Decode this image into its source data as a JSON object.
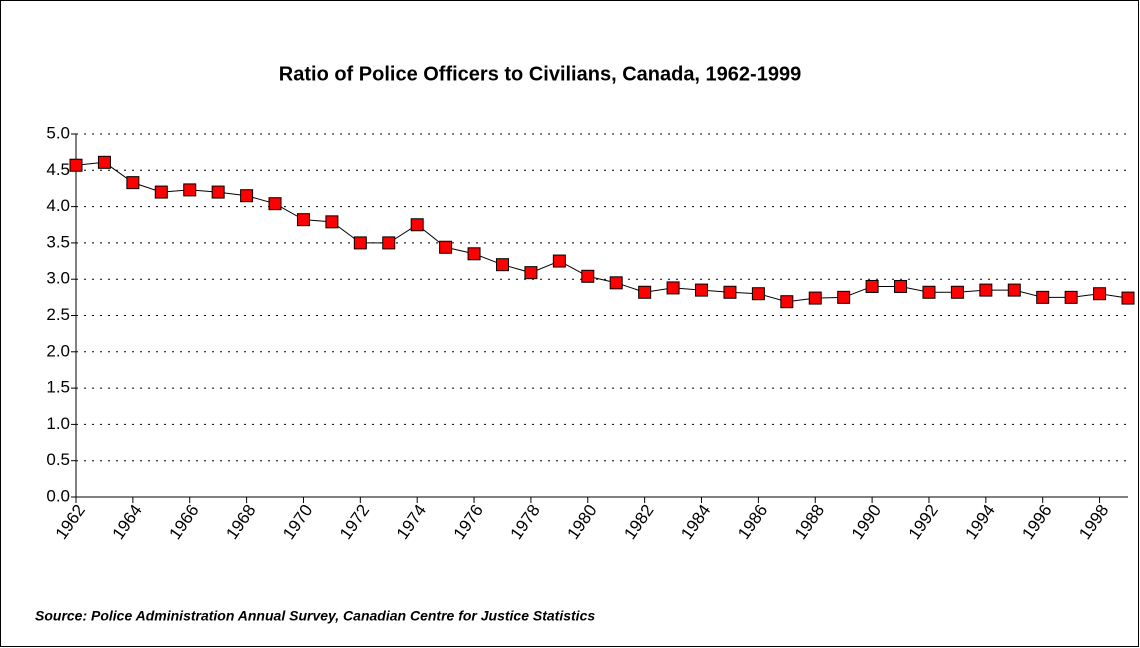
{
  "chart_data": {
    "type": "line",
    "title": "Ratio of Police Officers to Civilians, Canada, 1962-1999",
    "source": "Source:  Police Administration Annual Survey, Canadian Centre for Justice Statistics",
    "x": [
      1962,
      1963,
      1964,
      1965,
      1966,
      1967,
      1968,
      1969,
      1970,
      1971,
      1972,
      1973,
      1974,
      1975,
      1976,
      1977,
      1978,
      1979,
      1980,
      1981,
      1982,
      1983,
      1984,
      1985,
      1986,
      1987,
      1988,
      1989,
      1990,
      1991,
      1992,
      1993,
      1994,
      1995,
      1996,
      1997,
      1998,
      1999
    ],
    "series": [
      {
        "color": "#ff0000",
        "values": [
          4.57,
          4.61,
          4.33,
          4.2,
          4.23,
          4.2,
          4.15,
          4.04,
          3.82,
          3.79,
          3.5,
          3.5,
          3.75,
          3.44,
          3.35,
          3.2,
          3.09,
          3.25,
          3.04,
          2.95,
          2.82,
          2.88,
          2.85,
          2.82,
          2.8,
          2.69,
          2.74,
          2.75,
          2.9,
          2.9,
          2.82,
          2.82,
          2.85,
          2.85,
          2.75,
          2.75,
          2.8,
          2.74
        ]
      }
    ],
    "xlim": [
      1962,
      1999
    ],
    "xticks": [
      1962,
      1964,
      1966,
      1968,
      1970,
      1972,
      1974,
      1976,
      1978,
      1980,
      1982,
      1984,
      1986,
      1988,
      1990,
      1992,
      1994,
      1996,
      1998
    ],
    "ylim": [
      0,
      5
    ],
    "yticks": [
      {
        "value": 0,
        "label": "0.0"
      },
      {
        "value": 0.5,
        "label": "0.5"
      },
      {
        "value": 1,
        "label": "1.0"
      },
      {
        "value": 1.5,
        "label": "1.5"
      },
      {
        "value": 2,
        "label": "2.0"
      },
      {
        "value": 2.5,
        "label": "2.5"
      },
      {
        "value": 3,
        "label": "3.0"
      },
      {
        "value": 3.5,
        "label": "3.5"
      },
      {
        "value": 4,
        "label": "4.0"
      },
      {
        "value": 4.5,
        "label": "4.5"
      },
      {
        "value": 5,
        "label": "5.0"
      }
    ],
    "grid": true
  }
}
